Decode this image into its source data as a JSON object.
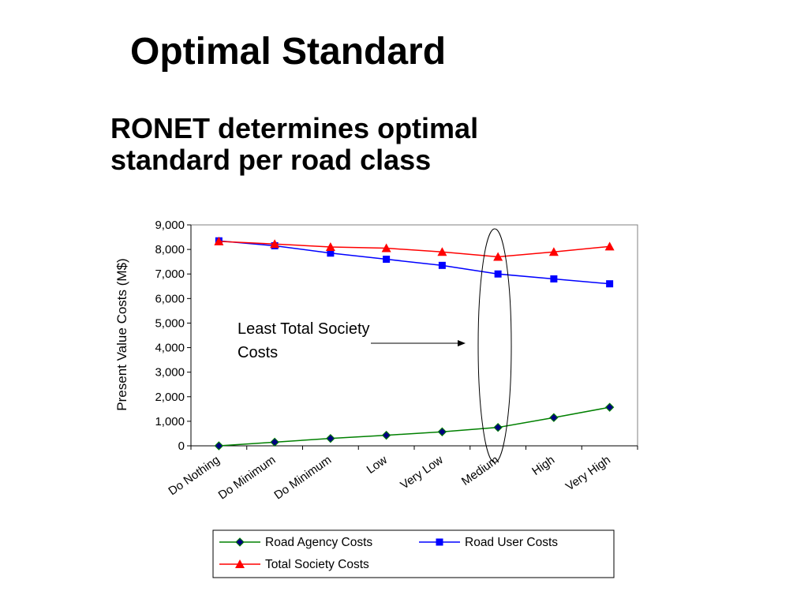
{
  "slide": {
    "title": "Optimal Standard",
    "subtitle_lines": [
      "RONET determines optimal",
      "standard per road class"
    ]
  },
  "colors": {
    "road_agency": "#008000",
    "road_user": "#0000ff",
    "total_society": "#ff0000",
    "axis": "#000000",
    "plot_border": "#808080"
  },
  "chart_data": {
    "type": "line",
    "ylabel": "Present Value Costs (M$)",
    "ylim": [
      0,
      9000
    ],
    "yticks": [
      0,
      1000,
      2000,
      3000,
      4000,
      5000,
      6000,
      7000,
      8000,
      9000
    ],
    "ytick_labels": [
      "0",
      "1,000",
      "2,000",
      "3,000",
      "4,000",
      "5,000",
      "6,000",
      "7,000",
      "8,000",
      "9,000"
    ],
    "categories": [
      "Do Nothing",
      "Do Minimum",
      "Do Minimum",
      "Low",
      "Very Low",
      "Medium",
      "High",
      "Very High"
    ],
    "series": [
      {
        "name": "Road Agency Costs",
        "marker": "diamond",
        "values": [
          0,
          150,
          300,
          430,
          570,
          750,
          1150,
          1570
        ]
      },
      {
        "name": "Road User Costs",
        "marker": "square",
        "values": [
          8350,
          8150,
          7850,
          7600,
          7350,
          7000,
          6800,
          6600
        ]
      },
      {
        "name": "Total Society Costs",
        "marker": "triangle",
        "values": [
          8330,
          8220,
          8100,
          8050,
          7900,
          7700,
          7900,
          8120
        ]
      }
    ],
    "annotation": {
      "lines": [
        "Least Total Society",
        "Costs"
      ],
      "target_category_index": 5
    },
    "legend_position": "bottom",
    "grid": false
  }
}
